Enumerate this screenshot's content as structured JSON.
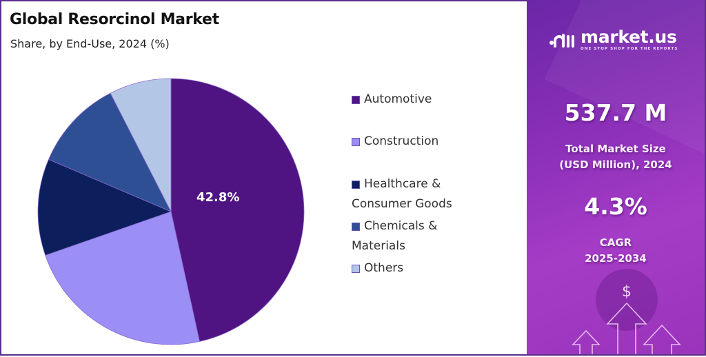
{
  "header": {
    "title": "Global Resorcinol Market",
    "subtitle": "Share, by End-Use, 2024 (%)"
  },
  "chart_data": {
    "type": "pie",
    "title": "Global Resorcinol Market",
    "subtitle": "Share, by End-Use, 2024 (%)",
    "categories": [
      "Automotive",
      "Construction",
      "Healthcare & Consumer Goods",
      "Chemicals & Materials",
      "Others"
    ],
    "values": [
      42.8,
      23.1,
      11.8,
      11.0,
      7.6
    ],
    "labeled_values": {
      "Automotive": 42.8
    },
    "colors": [
      "#4f1481",
      "#9b8ff5",
      "#0c1f5c",
      "#2e4f94",
      "#b3c6e6"
    ],
    "legend_position": "right",
    "data_label": "42.8%"
  },
  "legend": {
    "items": [
      {
        "line1": "Automotive",
        "line2": "",
        "color": "#4f1481"
      },
      {
        "line1": "Construction",
        "line2": "",
        "color": "#9b8ff5"
      },
      {
        "line1": "Healthcare &",
        "line2": "Consumer Goods",
        "color": "#0c1f5c"
      },
      {
        "line1": "Chemicals &",
        "line2": "Materials",
        "color": "#2e4f94"
      },
      {
        "line1": "Others",
        "line2": "",
        "color": "#b3c6e6"
      }
    ]
  },
  "brand": {
    "name": "market.us",
    "tagline": "ONE STOP SHOP FOR THE REPORTS"
  },
  "stats": {
    "market_size": "537.7 M",
    "market_size_label_1": "Total Market Size",
    "market_size_label_2": "(USD Million), 2024",
    "cagr": "4.3%",
    "cagr_label_1": "CAGR",
    "cagr_label_2": "2025-2034"
  },
  "decor": {
    "currency_symbol": "$"
  }
}
